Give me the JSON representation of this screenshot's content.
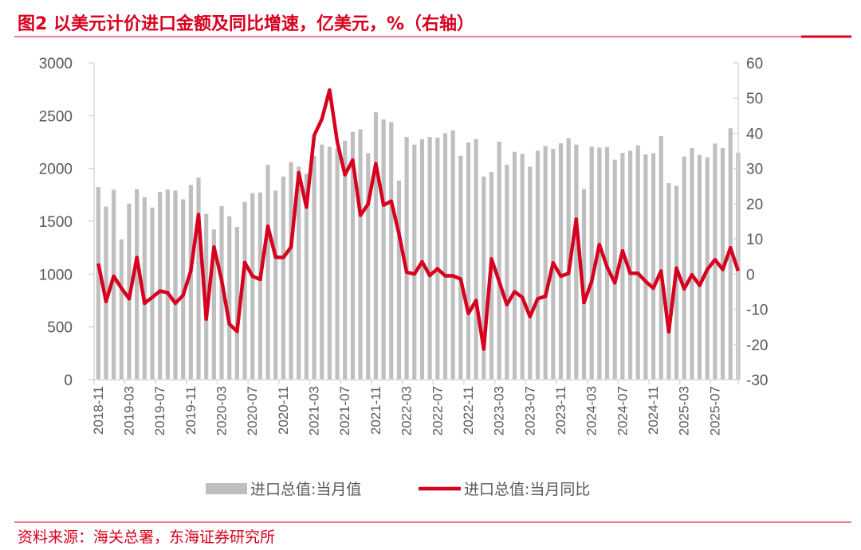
{
  "title": "图2  以美元计价进口金额及同比增速，亿美元，%（右轴）",
  "source": "资料来源：海关总署，东海证券研究所",
  "colors": {
    "bar": "#bfbfbf",
    "line": "#d7001e",
    "accent": "#d7001e",
    "axis": "#d9d9d9",
    "text": "#595959"
  },
  "chart_data": {
    "type": "bar+line",
    "x_start": "2018-11",
    "x_tick_labels": [
      "2018-11",
      "2019-03",
      "2019-07",
      "2019-11",
      "2020-03",
      "2020-07",
      "2020-11",
      "2021-03",
      "2021-07",
      "2021-11",
      "2022-03",
      "2022-07",
      "2022-11",
      "2023-03",
      "2023-07",
      "2023-11",
      "2024-03",
      "2024-07",
      "2024-11",
      "2025-03",
      "2025-07"
    ],
    "y_left": {
      "range": [
        0,
        3000
      ],
      "ticks": [
        0,
        500,
        1000,
        1500,
        2000,
        2500,
        3000
      ]
    },
    "y_right": {
      "range": [
        -30,
        60
      ],
      "ticks": [
        -30,
        -20,
        -10,
        0,
        10,
        20,
        30,
        40,
        50,
        60
      ]
    },
    "grid": false,
    "legend_position": "bottom",
    "series": [
      {
        "name": "进口总值:当月值",
        "type": "bar",
        "axis": "left",
        "values": [
          1824,
          1640,
          1799,
          1329,
          1668,
          1804,
          1729,
          1630,
          1778,
          1801,
          1791,
          1708,
          1844,
          1914,
          1570,
          1422,
          1643,
          1547,
          1447,
          1683,
          1766,
          1773,
          2035,
          1791,
          1924,
          2060,
          2017,
          1950,
          2120,
          2226,
          2206,
          2190,
          2263,
          2346,
          2371,
          2145,
          2532,
          2464,
          2439,
          1886,
          2298,
          2226,
          2278,
          2298,
          2293,
          2334,
          2361,
          2120,
          2246,
          2278,
          1924,
          1967,
          2253,
          2035,
          2158,
          2138,
          2017,
          2168,
          2213,
          2185,
          2238,
          2286,
          2226,
          1806,
          2206,
          2198,
          2203,
          2083,
          2148,
          2168,
          2218,
          2133,
          2145,
          2306,
          1861,
          1836,
          2112,
          2193,
          2128,
          2105,
          2236,
          2193,
          2381,
          2150
        ]
      },
      {
        "name": "进口总值:当月同比",
        "type": "line",
        "axis": "right",
        "values": [
          3.0,
          -7.8,
          -0.6,
          -4.0,
          -7.0,
          4.7,
          -8.3,
          -6.6,
          -4.8,
          -5.3,
          -8.3,
          -6.0,
          0.9,
          16.9,
          -12.8,
          7.7,
          -1.7,
          -14.2,
          -16.3,
          3.3,
          -0.6,
          -1.5,
          13.6,
          4.8,
          4.7,
          7.7,
          28.8,
          19.0,
          39.4,
          44.0,
          52.3,
          37.5,
          28.2,
          32.4,
          16.7,
          19.9,
          31.4,
          19.6,
          20.7,
          11.5,
          0.5,
          0.0,
          3.5,
          -0.4,
          1.5,
          -0.5,
          -0.5,
          -1.4,
          -11.2,
          -7.5,
          -21.3,
          4.3,
          -2.1,
          -8.7,
          -5.0,
          -6.6,
          -12.1,
          -7.0,
          -6.3,
          3.2,
          -0.6,
          0.2,
          15.6,
          -8.1,
          -2.1,
          8.4,
          2.0,
          -2.5,
          6.6,
          0.2,
          0.2,
          -2.1,
          -4.0,
          0.9,
          -16.4,
          1.7,
          -4.2,
          -0.2,
          -3.2,
          1.3,
          4.1,
          1.3,
          7.5,
          0.9
        ]
      }
    ]
  }
}
